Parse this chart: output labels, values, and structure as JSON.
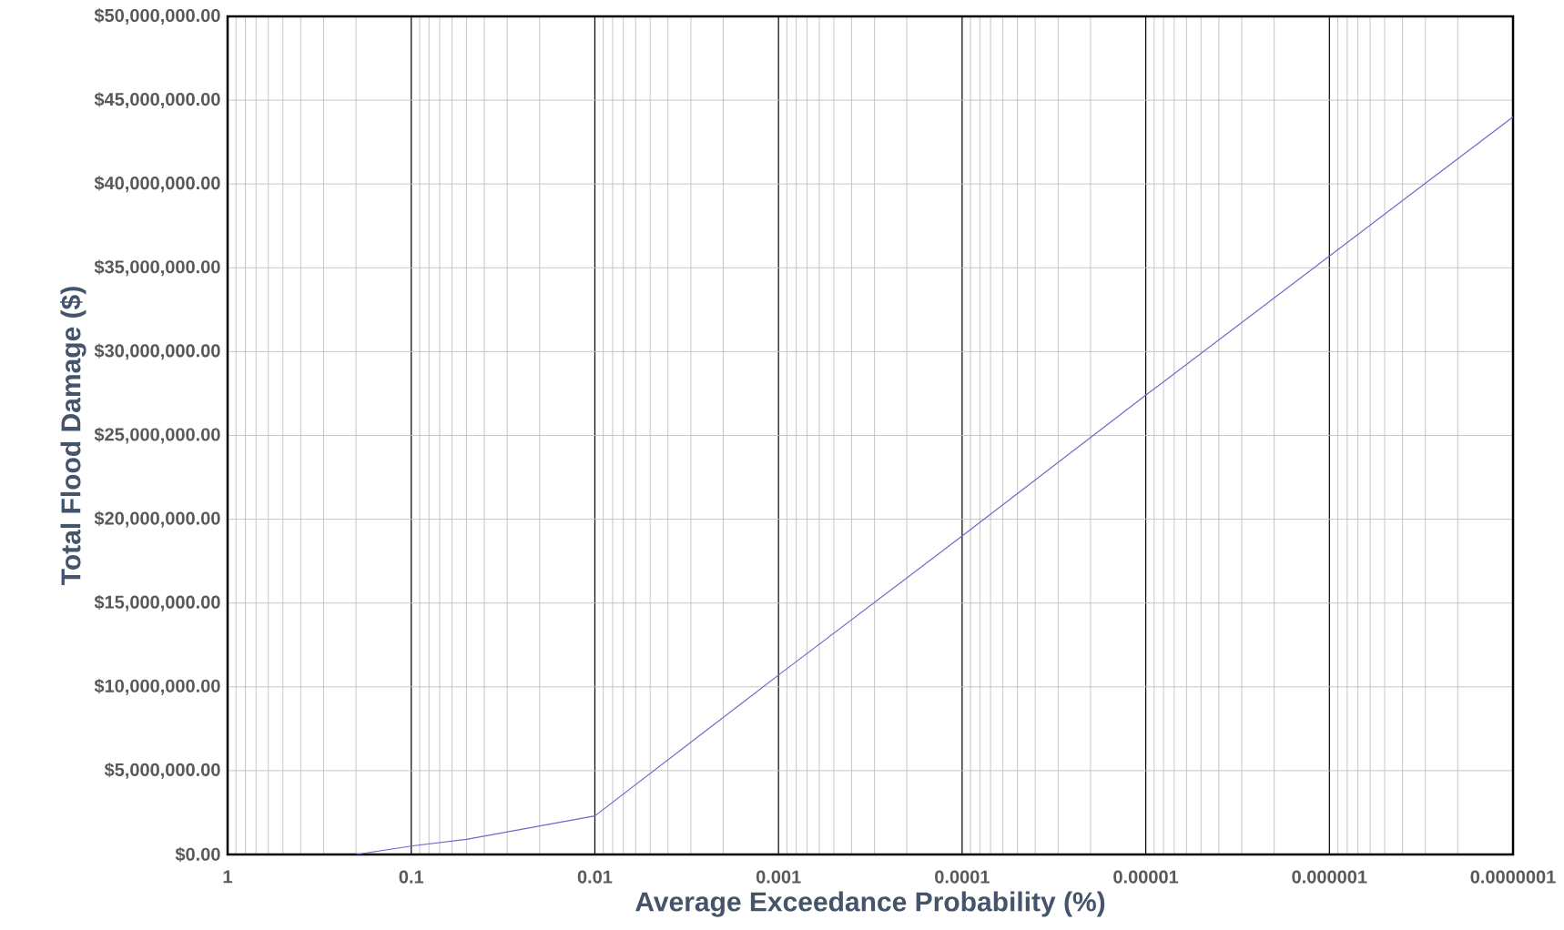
{
  "chart_data": {
    "type": "line",
    "xlabel": "Average Exceedance Probability (%)",
    "ylabel": "Total Flood Damage ($)",
    "x": [
      0.2,
      0.1,
      0.05,
      0.01,
      0.001,
      0.0001,
      1e-05,
      1e-06,
      1e-07
    ],
    "series": [
      {
        "color": "#6a6acd",
        "values": [
          0,
          500000,
          900000,
          2300000,
          10700000,
          19000000,
          27400000,
          35700000,
          44000000
        ]
      }
    ],
    "log": "x",
    "xlim": [
      1,
      1e-07
    ],
    "xticks": [
      {
        "value": 1,
        "label": "1"
      },
      {
        "value": 0.1,
        "label": "0.1"
      },
      {
        "value": 0.01,
        "label": "0.01"
      },
      {
        "value": 0.001,
        "label": "0.001"
      },
      {
        "value": 0.0001,
        "label": "0.0001"
      },
      {
        "value": 1e-05,
        "label": "0.00001"
      },
      {
        "value": 1e-06,
        "label": "0.000001"
      },
      {
        "value": 1e-07,
        "label": "0.0000001"
      }
    ],
    "ylim": [
      0,
      50000000
    ],
    "yticks": [
      {
        "value": 0,
        "label": "$0.00"
      },
      {
        "value": 5000000,
        "label": "$5,000,000.00"
      },
      {
        "value": 10000000,
        "label": "$10,000,000.00"
      },
      {
        "value": 15000000,
        "label": "$15,000,000.00"
      },
      {
        "value": 20000000,
        "label": "$20,000,000.00"
      },
      {
        "value": 25000000,
        "label": "$25,000,000.00"
      },
      {
        "value": 30000000,
        "label": "$30,000,000.00"
      },
      {
        "value": 35000000,
        "label": "$35,000,000.00"
      },
      {
        "value": 40000000,
        "label": "$40,000,000.00"
      },
      {
        "value": 45000000,
        "label": "$45,000,000.00"
      },
      {
        "value": 50000000,
        "label": "$50,000,000.00"
      }
    ],
    "grid": true,
    "marker": "none",
    "line_style": "solid"
  }
}
